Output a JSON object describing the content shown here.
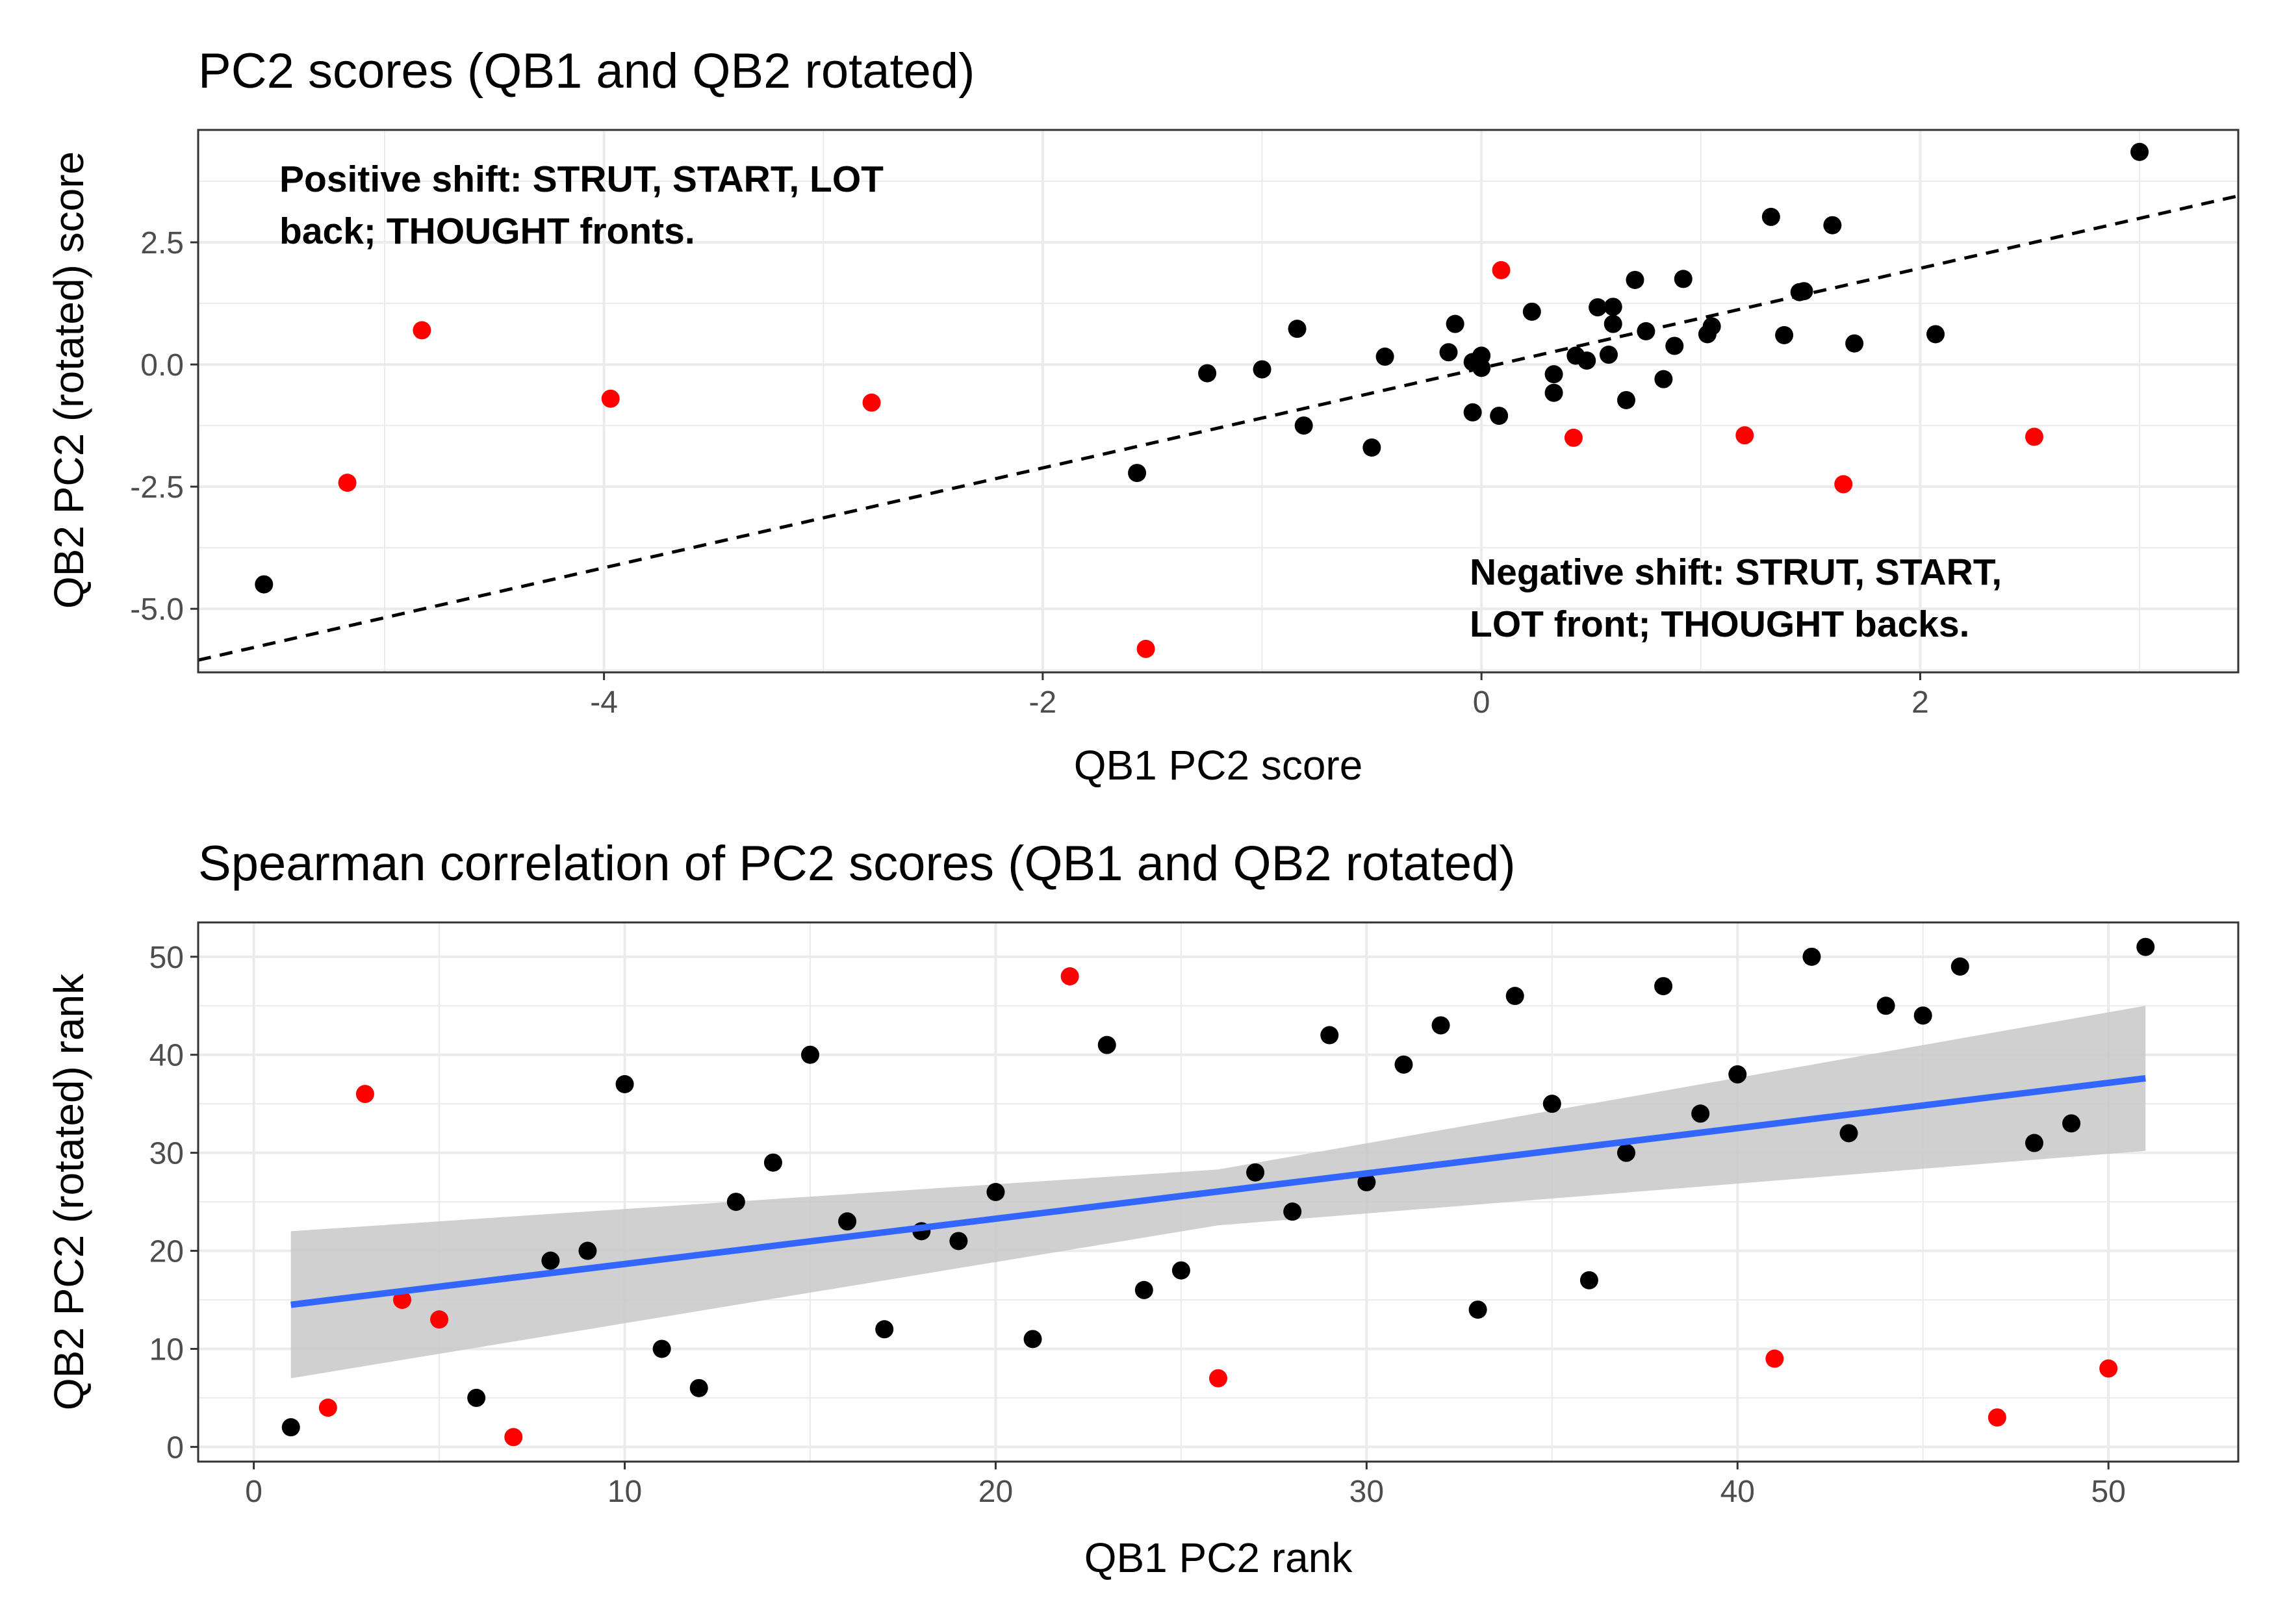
{
  "colors": {
    "point_default": "#000000",
    "point_highlight": "#ff0000",
    "ref_line": "#000000",
    "fit_line": "#3366ff",
    "ribbon": "#c8c8c8",
    "grid": "#ebebeb",
    "panel_border": "#333333"
  },
  "chart_data": [
    {
      "type": "scatter",
      "title": "PC2 scores (QB1 and QB2 rotated)",
      "xlabel": "QB1 PC2 score",
      "ylabel": "QB2 PC2 (rotated) score",
      "xlim": [
        -5.85,
        3.45
      ],
      "ylim": [
        -6.3,
        4.8
      ],
      "xticks": [
        -4,
        -2,
        0,
        2
      ],
      "yticks": [
        -5.0,
        -2.5,
        0.0,
        2.5
      ],
      "xtick_labels": [
        "-4",
        "-2",
        "0",
        "2"
      ],
      "ytick_labels": [
        "-5.0",
        "-2.5",
        "0.0",
        "2.5"
      ],
      "grid": true,
      "reference_line": {
        "style": "dashed",
        "x": [
          -5.85,
          3.45
        ],
        "y": [
          -6.05,
          3.45
        ]
      },
      "annotations": [
        {
          "lines": [
            "Positive shift: STRUT, START, LOT",
            "back; THOUGHT fronts."
          ],
          "position": "top-left"
        },
        {
          "lines": [
            "Negative shift: STRUT, START,",
            "LOT front; THOUGHT backs."
          ],
          "position": "bottom-right"
        }
      ],
      "points": [
        {
          "x": -5.55,
          "y": -4.5,
          "highlight": false
        },
        {
          "x": -5.17,
          "y": -2.42,
          "highlight": true
        },
        {
          "x": -4.83,
          "y": 0.7,
          "highlight": true
        },
        {
          "x": -3.97,
          "y": -0.7,
          "highlight": true
        },
        {
          "x": -2.78,
          "y": -0.78,
          "highlight": true
        },
        {
          "x": -1.57,
          "y": -2.22,
          "highlight": false
        },
        {
          "x": -1.53,
          "y": -5.82,
          "highlight": true
        },
        {
          "x": -1.25,
          "y": -0.18,
          "highlight": false
        },
        {
          "x": -1.0,
          "y": -0.1,
          "highlight": false
        },
        {
          "x": -0.84,
          "y": 0.73,
          "highlight": false
        },
        {
          "x": -0.81,
          "y": -1.25,
          "highlight": false
        },
        {
          "x": -0.5,
          "y": -1.7,
          "highlight": false
        },
        {
          "x": -0.44,
          "y": 0.16,
          "highlight": false
        },
        {
          "x": -0.15,
          "y": 0.25,
          "highlight": false
        },
        {
          "x": -0.12,
          "y": 0.83,
          "highlight": false
        },
        {
          "x": -0.04,
          "y": 0.05,
          "highlight": false
        },
        {
          "x": -0.04,
          "y": -0.98,
          "highlight": false
        },
        {
          "x": 0.0,
          "y": 0.18,
          "highlight": false
        },
        {
          "x": 0.0,
          "y": -0.07,
          "highlight": false
        },
        {
          "x": 0.08,
          "y": -1.05,
          "highlight": false
        },
        {
          "x": 0.09,
          "y": 1.93,
          "highlight": true
        },
        {
          "x": 0.23,
          "y": 1.08,
          "highlight": false
        },
        {
          "x": 0.33,
          "y": -0.2,
          "highlight": false
        },
        {
          "x": 0.33,
          "y": -0.58,
          "highlight": false
        },
        {
          "x": 0.42,
          "y": -1.5,
          "highlight": true
        },
        {
          "x": 0.43,
          "y": 0.18,
          "highlight": false
        },
        {
          "x": 0.48,
          "y": 0.08,
          "highlight": false
        },
        {
          "x": 0.53,
          "y": 1.17,
          "highlight": false
        },
        {
          "x": 0.58,
          "y": 0.2,
          "highlight": false
        },
        {
          "x": 0.6,
          "y": 0.83,
          "highlight": false
        },
        {
          "x": 0.6,
          "y": 1.18,
          "highlight": false
        },
        {
          "x": 0.66,
          "y": -0.73,
          "highlight": false
        },
        {
          "x": 0.7,
          "y": 1.73,
          "highlight": false
        },
        {
          "x": 0.75,
          "y": 0.68,
          "highlight": false
        },
        {
          "x": 0.83,
          "y": -0.3,
          "highlight": false
        },
        {
          "x": 0.88,
          "y": 0.38,
          "highlight": false
        },
        {
          "x": 0.92,
          "y": 1.75,
          "highlight": false
        },
        {
          "x": 1.03,
          "y": 0.62,
          "highlight": false
        },
        {
          "x": 1.05,
          "y": 0.78,
          "highlight": false
        },
        {
          "x": 1.2,
          "y": -1.45,
          "highlight": true
        },
        {
          "x": 1.32,
          "y": 3.02,
          "highlight": false
        },
        {
          "x": 1.38,
          "y": 0.6,
          "highlight": false
        },
        {
          "x": 1.45,
          "y": 1.48,
          "highlight": false
        },
        {
          "x": 1.47,
          "y": 1.5,
          "highlight": false
        },
        {
          "x": 1.6,
          "y": 2.85,
          "highlight": false
        },
        {
          "x": 1.65,
          "y": -2.45,
          "highlight": true
        },
        {
          "x": 1.7,
          "y": 0.43,
          "highlight": false
        },
        {
          "x": 2.07,
          "y": 0.62,
          "highlight": false
        },
        {
          "x": 2.52,
          "y": -1.48,
          "highlight": true
        },
        {
          "x": 3.0,
          "y": 4.35,
          "highlight": false
        }
      ]
    },
    {
      "type": "scatter",
      "title": "Spearman correlation of PC2 scores (QB1 and QB2 rotated)",
      "xlabel": "QB1 PC2 rank",
      "ylabel": "QB2 PC2 (rotated) rank",
      "xlim": [
        -1.5,
        53.5
      ],
      "ylim": [
        -1.5,
        53.5
      ],
      "xticks": [
        0,
        10,
        20,
        30,
        40,
        50
      ],
      "yticks": [
        0,
        10,
        20,
        30,
        40,
        50
      ],
      "xtick_labels": [
        "0",
        "10",
        "20",
        "30",
        "40",
        "50"
      ],
      "ytick_labels": [
        "0",
        "10",
        "20",
        "30",
        "40",
        "50"
      ],
      "grid": true,
      "fit_line": {
        "x": [
          1,
          51
        ],
        "y": [
          14.5,
          37.6
        ]
      },
      "confidence_band": {
        "x": [
          1,
          26,
          51
        ],
        "lower": [
          7.0,
          22.6,
          30.2
        ],
        "upper": [
          22.0,
          28.3,
          45.0
        ]
      },
      "points": [
        {
          "x": 1,
          "y": 2,
          "highlight": false
        },
        {
          "x": 2,
          "y": 4,
          "highlight": true
        },
        {
          "x": 3,
          "y": 36,
          "highlight": true
        },
        {
          "x": 4,
          "y": 15,
          "highlight": true
        },
        {
          "x": 5,
          "y": 13,
          "highlight": true
        },
        {
          "x": 6,
          "y": 5,
          "highlight": false
        },
        {
          "x": 7,
          "y": 1,
          "highlight": true
        },
        {
          "x": 8,
          "y": 19,
          "highlight": false
        },
        {
          "x": 9,
          "y": 20,
          "highlight": false
        },
        {
          "x": 10,
          "y": 37,
          "highlight": false
        },
        {
          "x": 11,
          "y": 10,
          "highlight": false
        },
        {
          "x": 12,
          "y": 6,
          "highlight": false
        },
        {
          "x": 13,
          "y": 25,
          "highlight": false
        },
        {
          "x": 14,
          "y": 29,
          "highlight": false
        },
        {
          "x": 15,
          "y": 40,
          "highlight": false
        },
        {
          "x": 16,
          "y": 23,
          "highlight": false
        },
        {
          "x": 17,
          "y": 12,
          "highlight": false
        },
        {
          "x": 18,
          "y": 22,
          "highlight": false
        },
        {
          "x": 19,
          "y": 21,
          "highlight": false
        },
        {
          "x": 20,
          "y": 26,
          "highlight": false
        },
        {
          "x": 21,
          "y": 11,
          "highlight": false
        },
        {
          "x": 22,
          "y": 48,
          "highlight": true
        },
        {
          "x": 23,
          "y": 41,
          "highlight": false
        },
        {
          "x": 24,
          "y": 16,
          "highlight": false
        },
        {
          "x": 25,
          "y": 18,
          "highlight": false
        },
        {
          "x": 26,
          "y": 7,
          "highlight": true
        },
        {
          "x": 27,
          "y": 28,
          "highlight": false
        },
        {
          "x": 28,
          "y": 24,
          "highlight": false
        },
        {
          "x": 29,
          "y": 42,
          "highlight": false
        },
        {
          "x": 30,
          "y": 27,
          "highlight": false
        },
        {
          "x": 31,
          "y": 39,
          "highlight": false
        },
        {
          "x": 32,
          "y": 43,
          "highlight": false
        },
        {
          "x": 33,
          "y": 14,
          "highlight": false
        },
        {
          "x": 34,
          "y": 46,
          "highlight": false
        },
        {
          "x": 35,
          "y": 35,
          "highlight": false
        },
        {
          "x": 36,
          "y": 17,
          "highlight": false
        },
        {
          "x": 37,
          "y": 30,
          "highlight": false
        },
        {
          "x": 38,
          "y": 47,
          "highlight": false
        },
        {
          "x": 39,
          "y": 34,
          "highlight": false
        },
        {
          "x": 40,
          "y": 38,
          "highlight": false
        },
        {
          "x": 41,
          "y": 9,
          "highlight": true
        },
        {
          "x": 42,
          "y": 50,
          "highlight": false
        },
        {
          "x": 43,
          "y": 32,
          "highlight": false
        },
        {
          "x": 44,
          "y": 45,
          "highlight": false
        },
        {
          "x": 45,
          "y": 44,
          "highlight": false
        },
        {
          "x": 46,
          "y": 49,
          "highlight": false
        },
        {
          "x": 47,
          "y": 3,
          "highlight": true
        },
        {
          "x": 48,
          "y": 31,
          "highlight": false
        },
        {
          "x": 49,
          "y": 33,
          "highlight": false
        },
        {
          "x": 50,
          "y": 8,
          "highlight": true
        },
        {
          "x": 51,
          "y": 51,
          "highlight": false
        }
      ]
    }
  ]
}
